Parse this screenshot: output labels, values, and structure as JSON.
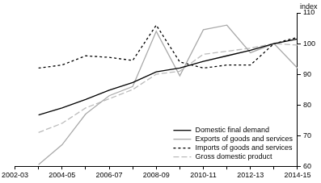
{
  "chart_data": {
    "type": "line",
    "ylabel": "index",
    "categories": [
      "2002-03",
      null,
      "2004-05",
      null,
      "2006-07",
      null,
      "2008-09",
      null,
      "2010-11",
      null,
      "2012-13",
      null,
      "2014-15"
    ],
    "series": [
      {
        "name": "Domestic final demand",
        "color": "#000000",
        "line_style": "solid",
        "values": [
          null,
          76.7,
          79,
          81.8,
          84.8,
          87.3,
          90.8,
          92,
          94.2,
          96,
          97.8,
          100,
          101.5
        ]
      },
      {
        "name": "Exports of goods and services",
        "color": "#aaaaaa",
        "line_style": "solid",
        "values": [
          null,
          60.5,
          67,
          77,
          83,
          86,
          104,
          89.5,
          104.5,
          106,
          97,
          100,
          92
        ]
      },
      {
        "name": "Imports of goods and services",
        "color": "#000000",
        "line_style": "dashed",
        "values": [
          null,
          92,
          93,
          96,
          95.5,
          94.5,
          106,
          94,
          92,
          93,
          93,
          100,
          102
        ]
      },
      {
        "name": "Gross domestic product",
        "color": "#bbbbbb",
        "line_style": "longdash",
        "values": [
          null,
          71,
          74,
          79,
          82,
          85,
          90,
          91,
          96.5,
          97.5,
          98.5,
          100,
          99.5
        ]
      }
    ],
    "ylim": [
      60,
      110
    ],
    "yticks": [
      60,
      70,
      80,
      90,
      100,
      110
    ],
    "grid": false,
    "legend": "lower right"
  }
}
